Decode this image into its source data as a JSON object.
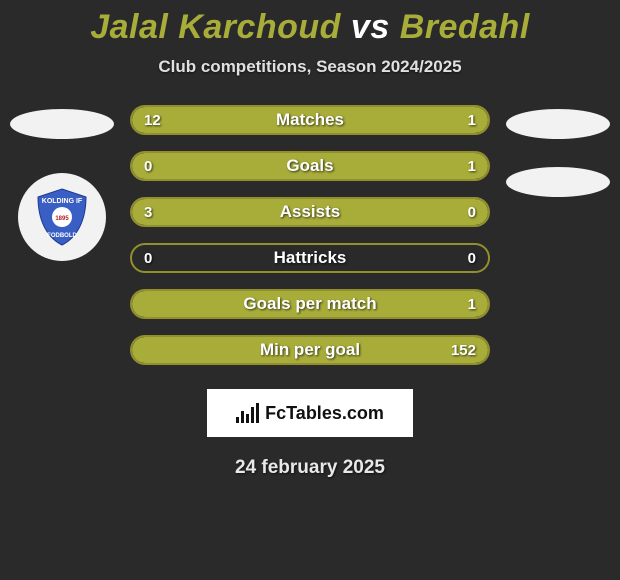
{
  "title": {
    "player1": "Jalal Karchoud",
    "vs": "vs",
    "player2": "Bredahl"
  },
  "subtitle": "Club competitions, Season 2024/2025",
  "colors": {
    "accent": "#a8ad3a",
    "accent_border": "#918f2e",
    "track_bg": "#2a2a2a",
    "ellipse": "#f2f2f2",
    "badge_bg": "#f2f2f2",
    "badge_shield": "#3a5fc4",
    "text": "#ffffff"
  },
  "bars": [
    {
      "label": "Matches",
      "left": "12",
      "right": "1",
      "left_pct": 92.3,
      "right_pct": 7.7
    },
    {
      "label": "Goals",
      "left": "0",
      "right": "1",
      "left_pct": 0,
      "right_pct": 100
    },
    {
      "label": "Assists",
      "left": "3",
      "right": "0",
      "left_pct": 100,
      "right_pct": 0
    },
    {
      "label": "Hattricks",
      "left": "0",
      "right": "0",
      "left_pct": 0,
      "right_pct": 0
    },
    {
      "label": "Goals per match",
      "left": "",
      "right": "1",
      "left_pct": 0,
      "right_pct": 100
    },
    {
      "label": "Min per goal",
      "left": "",
      "right": "152",
      "left_pct": 0,
      "right_pct": 100
    }
  ],
  "footer_brand": "FcTables.com",
  "date": "24 february 2025"
}
